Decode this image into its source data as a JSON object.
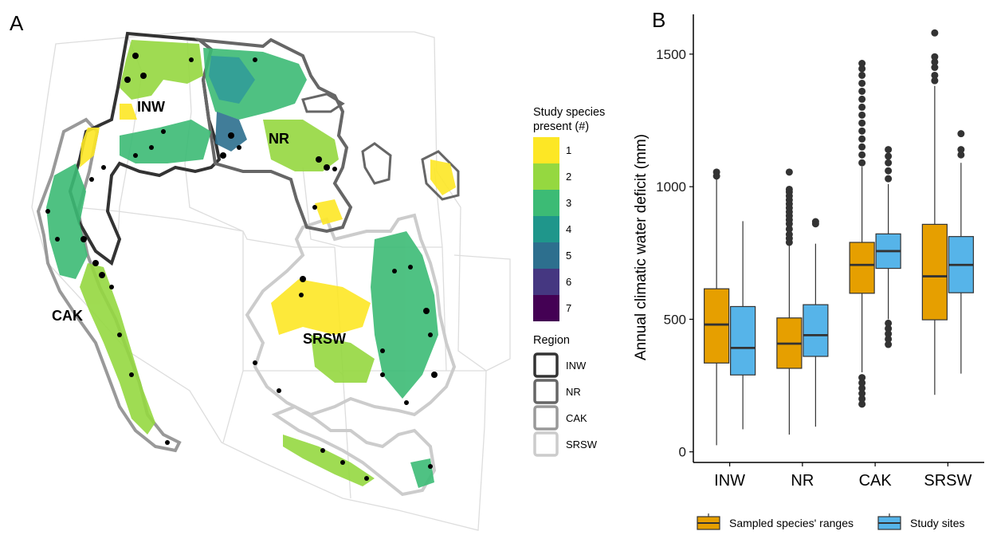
{
  "panels": {
    "a": "A",
    "b": "B"
  },
  "map": {
    "region_labels": {
      "inw": "INW",
      "nr": "NR",
      "cak": "CAK",
      "srsw": "SRSW"
    },
    "species_legend": {
      "title_line1": "Study species",
      "title_line2": "present (#)",
      "items": [
        {
          "label": "1",
          "color": "#FDE725"
        },
        {
          "label": "2",
          "color": "#95D840"
        },
        {
          "label": "3",
          "color": "#3CBB75"
        },
        {
          "label": "4",
          "color": "#1F968B"
        },
        {
          "label": "5",
          "color": "#2D6F8E"
        },
        {
          "label": "6",
          "color": "#453781"
        },
        {
          "label": "7",
          "color": "#440154"
        }
      ]
    },
    "region_legend": {
      "title": "Region",
      "items": [
        {
          "label": "INW",
          "color": "#333333"
        },
        {
          "label": "NR",
          "color": "#666666"
        },
        {
          "label": "CAK",
          "color": "#999999"
        },
        {
          "label": "SRSW",
          "color": "#cccccc"
        }
      ]
    }
  },
  "chart_data": {
    "type": "box",
    "categories": [
      "INW",
      "NR",
      "CAK",
      "SRSW"
    ],
    "ylabel": "Annual climatic water deficit (mm)",
    "xlabel": "",
    "ylim": [
      -40,
      1650
    ],
    "yticks": [
      0,
      500,
      1000,
      1500
    ],
    "series": [
      {
        "name": "Sampled species' ranges",
        "color": "#E69F00",
        "boxes": [
          {
            "min": 25,
            "q1": 335,
            "median": 480,
            "q3": 615,
            "max": 1030,
            "outliers": [
              1040,
              1055
            ]
          },
          {
            "min": 65,
            "q1": 315,
            "median": 408,
            "q3": 505,
            "max": 780,
            "outliers": [
              790,
              805,
              820,
              840,
              860,
              875,
              890,
              905,
              920,
              935,
              950,
              965,
              980,
              990,
              1055
            ]
          },
          {
            "min": 300,
            "q1": 598,
            "median": 705,
            "q3": 790,
            "max": 1075,
            "outliers": [
              180,
              200,
              220,
              240,
              260,
              280,
              1090,
              1120,
              1150,
              1180,
              1210,
              1240,
              1270,
              1300,
              1330,
              1360,
              1390,
              1420,
              1445,
              1465
            ]
          },
          {
            "min": 215,
            "q1": 498,
            "median": 662,
            "q3": 858,
            "max": 1380,
            "outliers": [
              1400,
              1420,
              1450,
              1470,
              1490,
              1580
            ]
          }
        ]
      },
      {
        "name": "Study sites",
        "color": "#56B4E9",
        "boxes": [
          {
            "min": 85,
            "q1": 290,
            "median": 392,
            "q3": 548,
            "max": 870,
            "outliers": []
          },
          {
            "min": 95,
            "q1": 360,
            "median": 440,
            "q3": 555,
            "max": 785,
            "outliers": [
              860,
              868
            ]
          },
          {
            "min": 500,
            "q1": 692,
            "median": 757,
            "q3": 822,
            "max": 1010,
            "outliers": [
              405,
              425,
              445,
              465,
              485,
              1030,
              1060,
              1090,
              1115,
              1140
            ]
          },
          {
            "min": 295,
            "q1": 600,
            "median": 705,
            "q3": 812,
            "max": 1090,
            "outliers": [
              1120,
              1140,
              1200
            ]
          }
        ]
      }
    ],
    "legend": {
      "position": "bottom"
    }
  }
}
